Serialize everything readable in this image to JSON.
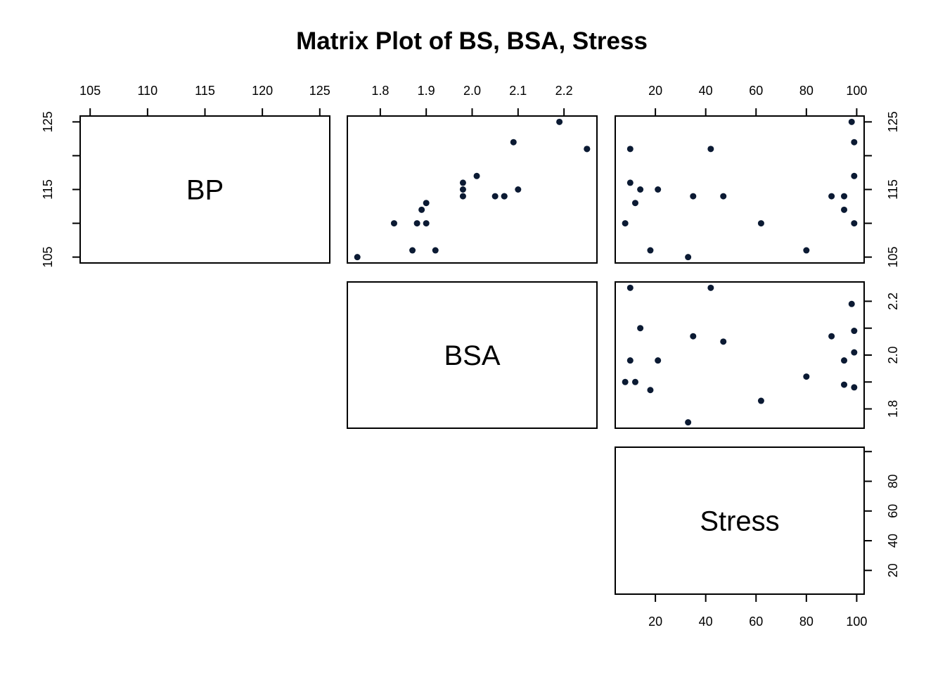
{
  "chart_data": {
    "type": "scatter",
    "subtype": "scatterplot-matrix",
    "title": "Matrix Plot of BS, BSA, Stress",
    "variables": [
      "BP",
      "BSA",
      "Stress"
    ],
    "panels": "upper",
    "point_color": "#0b1a33",
    "grid": false,
    "ticks": {
      "BP": [
        105,
        110,
        115,
        120,
        125
      ],
      "BP_vertical_labels": [
        105,
        115,
        125
      ],
      "BSA": [
        1.8,
        1.9,
        2.0,
        2.1,
        2.2
      ],
      "BSA_vertical_labels": [
        1.8,
        2.0,
        2.2
      ],
      "Stress": [
        20,
        40,
        60,
        80,
        100
      ],
      "Stress_vertical_labels": [
        20,
        40,
        60,
        80
      ]
    },
    "ranges": {
      "BP": [
        105,
        125
      ],
      "BSA": [
        1.75,
        2.25
      ],
      "Stress": [
        8,
        99
      ]
    },
    "data": {
      "BP": [
        105,
        115,
        116,
        117,
        112,
        121,
        121,
        110,
        110,
        114,
        114,
        115,
        114,
        106,
        125,
        114,
        106,
        113,
        110,
        122
      ],
      "BSA": [
        1.75,
        2.1,
        1.98,
        2.01,
        1.89,
        2.25,
        2.25,
        1.9,
        1.83,
        2.07,
        2.07,
        1.98,
        2.05,
        1.92,
        2.19,
        1.98,
        1.87,
        1.9,
        1.88,
        2.09
      ],
      "Stress": [
        33,
        14,
        10,
        99,
        95,
        10,
        42,
        8,
        62,
        35,
        90,
        21,
        47,
        80,
        98,
        95,
        18,
        12,
        99,
        99
      ]
    }
  }
}
